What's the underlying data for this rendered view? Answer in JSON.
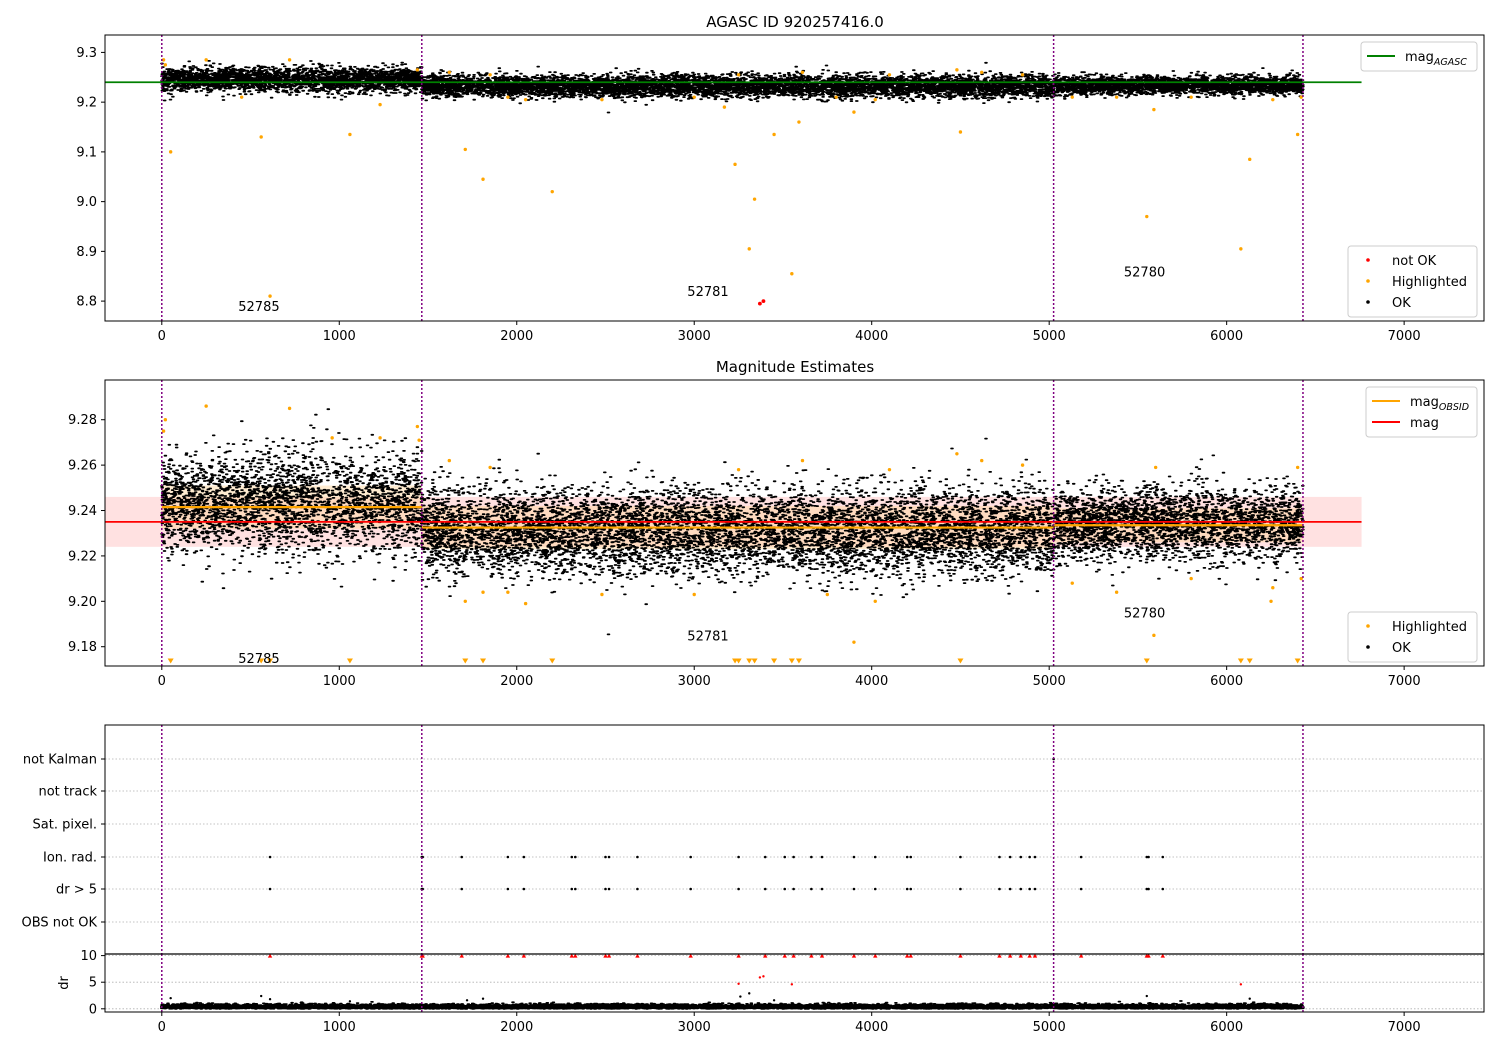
{
  "chart_data": [
    {
      "type": "scatter",
      "title": "AGASC ID 920257416.0",
      "xlim": [
        -320,
        7450
      ],
      "ylim": [
        8.76,
        9.335
      ],
      "xticks": [
        0,
        1000,
        2000,
        3000,
        4000,
        5000,
        6000,
        7000
      ],
      "yticks": [
        8.8,
        8.9,
        9.0,
        9.1,
        9.2,
        9.3
      ],
      "ytick_labels": [
        "8.8",
        "8.9",
        "9.0",
        "9.1",
        "9.2",
        "9.3"
      ],
      "legend_lines": [
        {
          "name": "mag",
          "sub": "AGASC",
          "color": "#008000"
        }
      ],
      "legend_points": [
        {
          "name": "not OK",
          "color": "#ff0000"
        },
        {
          "name": "Highlighted",
          "color": "#ffa500"
        },
        {
          "name": "OK",
          "color": "#000000"
        }
      ],
      "obsid_boundaries": [
        0,
        1465,
        5025,
        6430
      ],
      "obsid_labels": [
        {
          "text": "52785",
          "x": 600,
          "y": 8.79
        },
        {
          "text": "52781",
          "x": 3130,
          "y": 8.82
        },
        {
          "text": "52780",
          "x": 5590,
          "y": 8.86
        }
      ],
      "hlines": [
        {
          "y": 9.24,
          "x0": -320,
          "x1": 6760,
          "color": "#008000"
        }
      ],
      "ok_segments": [
        {
          "x0": 0,
          "x1": 1465,
          "center": 9.245,
          "spread": 0.012
        },
        {
          "x0": 1465,
          "x1": 5025,
          "center": 9.232,
          "spread": 0.011
        },
        {
          "x0": 5025,
          "x1": 6430,
          "center": 9.234,
          "spread": 0.009
        }
      ],
      "highlighted_points": [
        [
          10,
          9.285
        ],
        [
          20,
          9.275
        ],
        [
          50,
          9.1
        ],
        [
          250,
          9.285
        ],
        [
          450,
          9.21
        ],
        [
          560,
          9.13
        ],
        [
          610,
          8.81
        ],
        [
          720,
          9.285
        ],
        [
          1060,
          9.135
        ],
        [
          1230,
          9.195
        ],
        [
          1440,
          9.265
        ],
        [
          1620,
          9.26
        ],
        [
          1710,
          9.105
        ],
        [
          1810,
          9.045
        ],
        [
          1850,
          9.255
        ],
        [
          1950,
          9.21
        ],
        [
          2050,
          9.205
        ],
        [
          2200,
          9.02
        ],
        [
          2480,
          9.205
        ],
        [
          3000,
          9.21
        ],
        [
          3170,
          9.19
        ],
        [
          3230,
          9.075
        ],
        [
          3250,
          9.255
        ],
        [
          3310,
          8.905
        ],
        [
          3340,
          9.005
        ],
        [
          3450,
          9.135
        ],
        [
          3550,
          8.855
        ],
        [
          3590,
          9.16
        ],
        [
          3610,
          9.26
        ],
        [
          3800,
          9.21
        ],
        [
          3900,
          9.18
        ],
        [
          4020,
          9.205
        ],
        [
          4100,
          9.255
        ],
        [
          4480,
          9.265
        ],
        [
          4500,
          9.14
        ],
        [
          4620,
          9.26
        ],
        [
          4850,
          9.255
        ],
        [
          5130,
          9.21
        ],
        [
          5380,
          9.21
        ],
        [
          5550,
          8.97
        ],
        [
          5590,
          9.185
        ],
        [
          5800,
          9.21
        ],
        [
          6080,
          8.905
        ],
        [
          6130,
          9.085
        ],
        [
          6260,
          9.205
        ],
        [
          6400,
          9.135
        ],
        [
          6420,
          9.21
        ]
      ],
      "not_ok_points": [
        [
          3370,
          8.795
        ],
        [
          3390,
          8.8
        ]
      ]
    },
    {
      "type": "scatter",
      "title": "Magnitude Estimates",
      "xlim": [
        -320,
        7450
      ],
      "ylim": [
        9.1715,
        9.2975
      ],
      "xticks": [
        0,
        1000,
        2000,
        3000,
        4000,
        5000,
        6000,
        7000
      ],
      "yticks": [
        9.18,
        9.2,
        9.22,
        9.24,
        9.26,
        9.28
      ],
      "ytick_labels": [
        "9.18",
        "9.20",
        "9.22",
        "9.24",
        "9.26",
        "9.28"
      ],
      "legend_lines": [
        {
          "name": "mag",
          "sub": "OBSID",
          "color": "#ffa500"
        },
        {
          "name": "mag",
          "sub": "",
          "color": "#ff0000"
        }
      ],
      "legend_points": [
        {
          "name": "Highlighted",
          "color": "#ffa500"
        },
        {
          "name": "OK",
          "color": "#000000"
        }
      ],
      "obsid_boundaries": [
        0,
        1465,
        5025,
        6430
      ],
      "obsid_labels": [
        {
          "text": "52785",
          "x": 600,
          "y": 9.175
        },
        {
          "text": "52781",
          "x": 3130,
          "y": 9.185
        },
        {
          "text": "52780",
          "x": 5590,
          "y": 9.195
        }
      ],
      "mean_band": {
        "y0": 9.224,
        "y1": 9.246,
        "x0": -320,
        "x1": 6760,
        "color": "#ffc8c8"
      },
      "mean_line": {
        "y": 9.235,
        "x0": -320,
        "x1": 6760,
        "color": "#ff0000"
      },
      "obsid_means": [
        {
          "x0": 0,
          "x1": 1465,
          "y": 9.2415,
          "band": [
            9.232,
            9.251
          ]
        },
        {
          "x0": 1465,
          "x1": 5025,
          "y": 9.2325,
          "band": [
            9.223,
            9.242
          ]
        },
        {
          "x0": 5025,
          "x1": 6430,
          "y": 9.2335,
          "band": [
            9.226,
            9.241
          ]
        }
      ],
      "ok_segments": [
        {
          "x0": 0,
          "x1": 1465,
          "center": 9.243,
          "spread": 0.011
        },
        {
          "x0": 1465,
          "x1": 5025,
          "center": 9.231,
          "spread": 0.0095
        },
        {
          "x0": 5025,
          "x1": 6430,
          "center": 9.234,
          "spread": 0.008
        }
      ],
      "highlighted_points": [
        [
          10,
          9.275
        ],
        [
          20,
          9.28
        ],
        [
          250,
          9.286
        ],
        [
          720,
          9.285
        ],
        [
          960,
          9.272
        ],
        [
          1230,
          9.272
        ],
        [
          1440,
          9.277
        ],
        [
          1450,
          9.271
        ],
        [
          1620,
          9.262
        ],
        [
          1710,
          9.2
        ],
        [
          1810,
          9.204
        ],
        [
          1850,
          9.259
        ],
        [
          1950,
          9.204
        ],
        [
          2050,
          9.199
        ],
        [
          2480,
          9.203
        ],
        [
          3000,
          9.203
        ],
        [
          3250,
          9.258
        ],
        [
          3610,
          9.262
        ],
        [
          3750,
          9.203
        ],
        [
          3900,
          9.182
        ],
        [
          4020,
          9.2
        ],
        [
          4100,
          9.258
        ],
        [
          4480,
          9.265
        ],
        [
          4620,
          9.262
        ],
        [
          4850,
          9.26
        ],
        [
          5130,
          9.208
        ],
        [
          5380,
          9.204
        ],
        [
          5590,
          9.185
        ],
        [
          5600,
          9.259
        ],
        [
          5800,
          9.21
        ],
        [
          6250,
          9.2
        ],
        [
          6260,
          9.206
        ],
        [
          6400,
          9.259
        ],
        [
          6420,
          9.21
        ]
      ],
      "offscale_markers": [
        50,
        560,
        610,
        1060,
        1710,
        1810,
        2200,
        3230,
        3250,
        3310,
        3340,
        3450,
        3550,
        3590,
        4500,
        5550,
        6080,
        6130,
        6400
      ]
    },
    {
      "type": "scatter",
      "title": "",
      "xlim": [
        -320,
        7450
      ],
      "xticks": [
        0,
        1000,
        2000,
        3000,
        4000,
        5000,
        6000,
        7000
      ],
      "flag_labels": [
        "not Kalman",
        "not track",
        "Sat. pixel.",
        "Ion. rad.",
        "dr > 5",
        "OBS not OK"
      ],
      "obsid_boundaries": [
        0,
        1465,
        5025,
        6430
      ],
      "flag_hits": {
        "not Kalman": [
          5025
        ],
        "not track": [],
        "Sat. pixel.": [],
        "Ion. rad.": [
          610,
          1465,
          1470,
          1690,
          1950,
          2040,
          2310,
          2330,
          2500,
          2520,
          2680,
          2980,
          3250,
          3400,
          3510,
          3560,
          3660,
          3720,
          3900,
          4020,
          4200,
          4220,
          4500,
          4720,
          4780,
          4840,
          4890,
          4920,
          5180,
          5550,
          5560,
          5640
        ],
        "dr > 5": [
          610,
          1465,
          1470,
          1690,
          1950,
          2040,
          2310,
          2330,
          2500,
          2520,
          2680,
          2980,
          3250,
          3400,
          3510,
          3560,
          3660,
          3720,
          3900,
          4020,
          4200,
          4220,
          4500,
          4720,
          4780,
          4840,
          4890,
          4920,
          5180,
          5550,
          5560,
          5640
        ],
        "OBS not OK": []
      }
    },
    {
      "type": "scatter",
      "title": "",
      "ylabel": "dr",
      "xlim": [
        -320,
        7450
      ],
      "ylim": [
        -0.6,
        10.3
      ],
      "xticks": [
        0,
        1000,
        2000,
        3000,
        4000,
        5000,
        6000,
        7000
      ],
      "xtick_labels": [
        "0",
        "1000",
        "2000",
        "3000",
        "4000",
        "5000",
        "6000",
        "7000"
      ],
      "yticks": [
        0,
        5,
        10
      ],
      "ytick_labels": [
        "0",
        "5",
        "10"
      ],
      "obsid_boundaries": [
        0,
        1465,
        5025,
        6430
      ],
      "ok_range": {
        "x0": 0,
        "x1": 6430,
        "center": 0.4,
        "spread": 0.25
      },
      "outliers_black": [
        [
          50,
          2.0
        ],
        [
          560,
          2.4
        ],
        [
          610,
          1.8
        ],
        [
          1060,
          1.4
        ],
        [
          1720,
          1.6
        ],
        [
          1810,
          1.9
        ],
        [
          3260,
          2.3
        ],
        [
          3310,
          2.9
        ],
        [
          3450,
          1.6
        ],
        [
          5550,
          2.4
        ],
        [
          6130,
          1.9
        ]
      ],
      "outliers_red": [
        [
          3250,
          4.7
        ],
        [
          3370,
          5.9
        ],
        [
          3390,
          6.1
        ],
        [
          3550,
          4.6
        ],
        [
          6080,
          4.6
        ]
      ],
      "capped_red": [
        610,
        1465,
        1470,
        1690,
        1950,
        2040,
        2310,
        2330,
        2500,
        2520,
        2680,
        2980,
        3250,
        3400,
        3510,
        3560,
        3660,
        3720,
        3900,
        4020,
        4200,
        4220,
        4500,
        4720,
        4780,
        4840,
        4890,
        4920,
        5180,
        5550,
        5560,
        5640
      ]
    }
  ]
}
